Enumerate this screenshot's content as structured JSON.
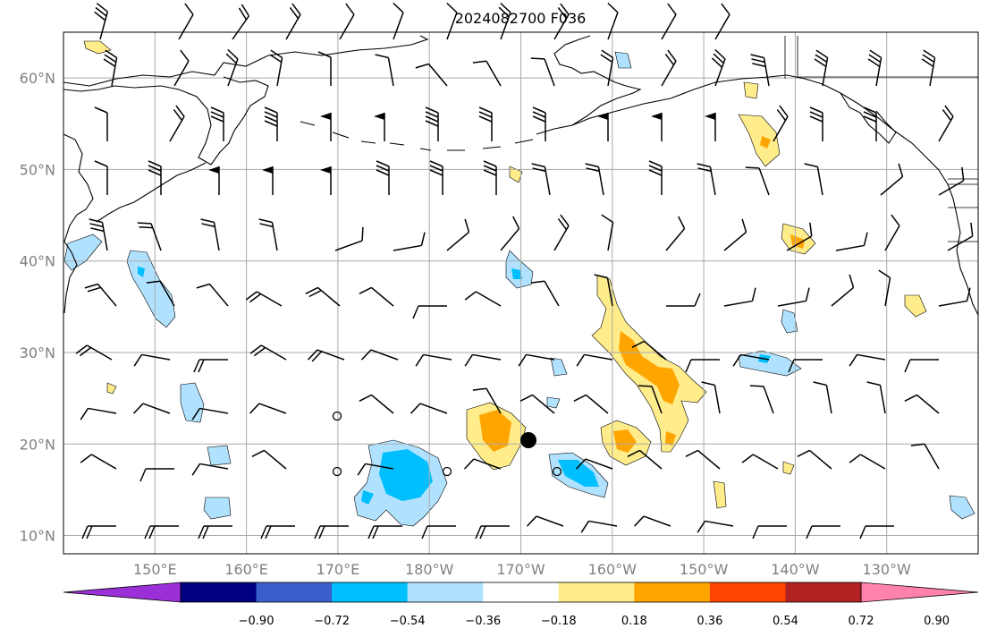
{
  "title": "2024082700 F036",
  "lat_labels": [
    "60°N",
    "50°N",
    "40°N",
    "30°N",
    "20°N",
    "10°N"
  ],
  "lat_values": [
    60,
    50,
    40,
    30,
    20,
    10
  ],
  "lon_labels": [
    "150°E",
    "160°E",
    "170°E",
    "180°W",
    "170°W",
    "160°W",
    "150°W",
    "140°W",
    "130°W"
  ],
  "lon_values": [
    150,
    160,
    170,
    180,
    190,
    200,
    210,
    220,
    230
  ],
  "map_extent": {
    "lon": [
      140,
      240
    ],
    "lat": [
      8,
      65
    ]
  },
  "colorbar": {
    "ticks": [
      "−0.90",
      "−0.72",
      "−0.54",
      "−0.36",
      "−0.18",
      "0.18",
      "0.36",
      "0.54",
      "0.72",
      "0.90"
    ],
    "colors": [
      "#9b30d9",
      "#000080",
      "#3a5fcd",
      "#00bfff",
      "#b0e2ff",
      "#ffffff",
      "#ffec8b",
      "#ffa500",
      "#ff4500",
      "#b22222",
      "#ff82ab"
    ]
  },
  "colors": {
    "grid": "#a9a9a9",
    "coast": "#000000",
    "light_blue": "#b0e2ff",
    "blue": "#00bfff",
    "yellow": "#ffec8b",
    "orange": "#ffa500"
  }
}
